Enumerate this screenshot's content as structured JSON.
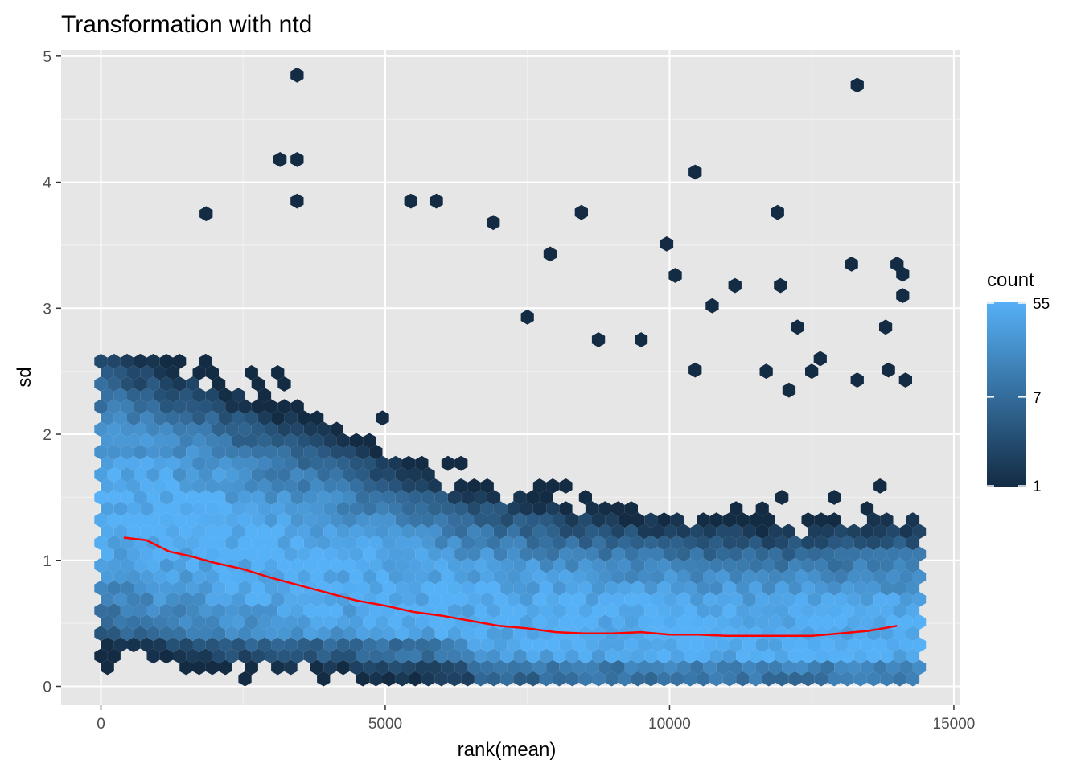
{
  "chart_data": {
    "type": "hexbin",
    "title": "Transformation with ntd",
    "xlabel": "rank(mean)",
    "ylabel": "sd",
    "xlim": [
      -700,
      15100
    ],
    "ylim": [
      -0.15,
      5.05
    ],
    "x_ticks": [
      0,
      5000,
      10000,
      15000
    ],
    "x_tick_labels": [
      "0",
      "5000",
      "10000",
      "15000"
    ],
    "y_ticks": [
      0,
      1,
      2,
      3,
      4,
      5
    ],
    "y_tick_labels": [
      "0",
      "1",
      "2",
      "3",
      "4",
      "5"
    ],
    "grid": true,
    "panel_background": "#e6e6e6",
    "legend": {
      "title": "count",
      "position": "right",
      "scale": "log",
      "breaks": [
        55,
        7,
        1
      ],
      "labels": [
        "55",
        "7",
        "1"
      ],
      "color_low": "#132b43",
      "color_high": "#56b1f7"
    },
    "trend_line": {
      "color": "#ff0000",
      "x": [
        400,
        800,
        1200,
        1600,
        2000,
        2500,
        3000,
        3500,
        4000,
        4500,
        5000,
        5500,
        6000,
        6500,
        7000,
        7500,
        8000,
        8500,
        9000,
        9500,
        10000,
        10500,
        11000,
        11500,
        12000,
        12500,
        13000,
        13500,
        14000
      ],
      "y": [
        1.18,
        1.16,
        1.07,
        1.03,
        0.98,
        0.93,
        0.86,
        0.8,
        0.74,
        0.68,
        0.64,
        0.59,
        0.56,
        0.52,
        0.48,
        0.46,
        0.43,
        0.42,
        0.42,
        0.43,
        0.41,
        0.41,
        0.4,
        0.4,
        0.4,
        0.4,
        0.42,
        0.44,
        0.48
      ]
    },
    "density": {
      "x_range": [
        0,
        14400
      ],
      "center_sd": [
        1.45,
        1.3,
        1.15,
        1.0,
        0.88,
        0.75,
        0.65,
        0.58,
        0.52,
        0.48,
        0.46,
        0.44,
        0.43,
        0.43,
        0.43
      ],
      "spread_sd": [
        0.45,
        0.45,
        0.44,
        0.42,
        0.4,
        0.38,
        0.35,
        0.33,
        0.32,
        0.31,
        0.3,
        0.3,
        0.3,
        0.31,
        0.33
      ],
      "max_count": [
        52,
        55,
        55,
        54,
        52,
        50,
        50,
        52,
        53,
        54,
        55,
        55,
        54,
        52,
        45
      ]
    },
    "outliers": [
      [
        3450,
        4.85
      ],
      [
        13300,
        4.77
      ],
      [
        3150,
        4.18
      ],
      [
        3450,
        4.18
      ],
      [
        10450,
        4.08
      ],
      [
        3450,
        3.85
      ],
      [
        5450,
        3.85
      ],
      [
        5900,
        3.85
      ],
      [
        1850,
        3.75
      ],
      [
        8450,
        3.76
      ],
      [
        11900,
        3.76
      ],
      [
        6900,
        3.68
      ],
      [
        7900,
        3.43
      ],
      [
        9950,
        3.51
      ],
      [
        10100,
        3.26
      ],
      [
        13200,
        3.35
      ],
      [
        14000,
        3.35
      ],
      [
        14100,
        3.27
      ],
      [
        7500,
        2.93
      ],
      [
        8750,
        2.75
      ],
      [
        9500,
        2.75
      ],
      [
        10750,
        3.02
      ],
      [
        11150,
        3.18
      ],
      [
        11950,
        3.18
      ],
      [
        12250,
        2.85
      ],
      [
        12650,
        2.6
      ],
      [
        12500,
        2.5
      ],
      [
        11700,
        2.5
      ],
      [
        12100,
        2.35
      ],
      [
        10450,
        2.51
      ],
      [
        14100,
        3.1
      ],
      [
        13800,
        2.85
      ],
      [
        14150,
        2.43
      ],
      [
        13850,
        2.51
      ],
      [
        13300,
        2.43
      ]
    ]
  }
}
